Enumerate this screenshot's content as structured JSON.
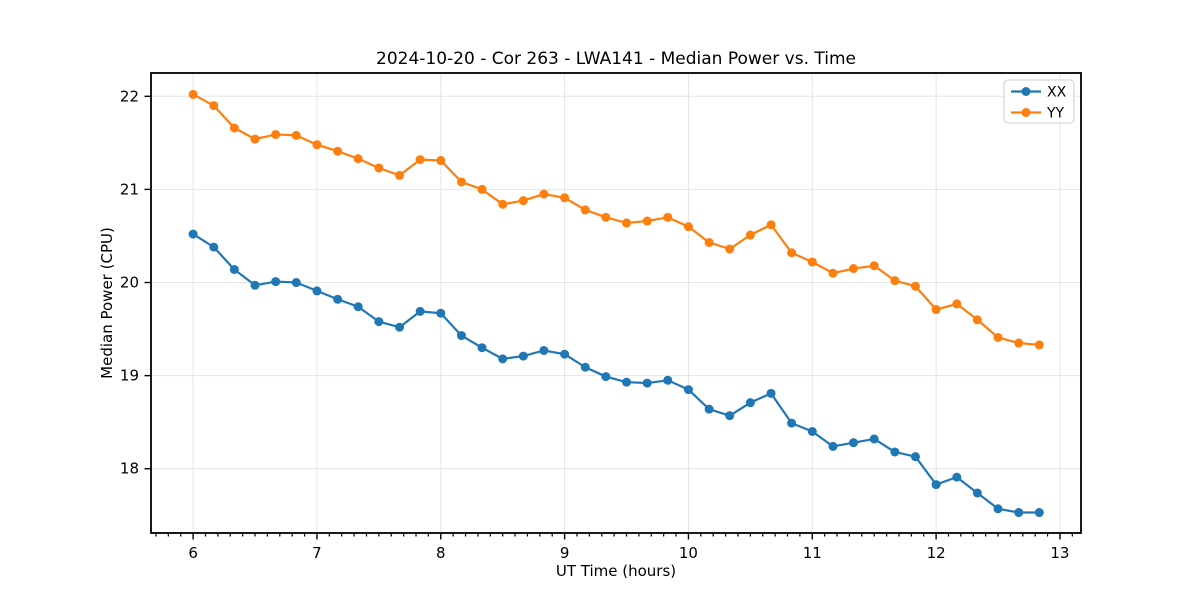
{
  "chart_data": {
    "type": "line",
    "title": "2024-10-20 - Cor 263 - LWA141 - Median Power vs. Time",
    "xlabel": "UT Time (hours)",
    "ylabel": "Median Power (CPU)",
    "x": [
      6.0,
      6.167,
      6.333,
      6.5,
      6.667,
      6.833,
      7.0,
      7.167,
      7.333,
      7.5,
      7.667,
      7.833,
      8.0,
      8.167,
      8.333,
      8.5,
      8.667,
      8.833,
      9.0,
      9.167,
      9.333,
      9.5,
      9.667,
      9.833,
      10.0,
      10.167,
      10.333,
      10.5,
      10.667,
      10.833,
      11.0,
      11.167,
      11.333,
      11.5,
      11.667,
      11.833,
      12.0,
      12.167,
      12.333,
      12.5,
      12.667,
      12.833
    ],
    "series": [
      {
        "name": "XX",
        "color": "#1f77b4",
        "marker": "circle",
        "values": [
          20.52,
          20.38,
          20.14,
          19.97,
          20.01,
          20.0,
          19.91,
          19.82,
          19.74,
          19.58,
          19.52,
          19.69,
          19.67,
          19.43,
          19.3,
          19.18,
          19.21,
          19.27,
          19.23,
          19.09,
          18.99,
          18.93,
          18.92,
          18.95,
          18.85,
          18.64,
          18.57,
          18.71,
          18.81,
          18.49,
          18.4,
          18.24,
          18.28,
          18.32,
          18.18,
          18.13,
          17.83,
          17.91,
          17.74,
          17.57,
          17.53,
          17.53
        ]
      },
      {
        "name": "YY",
        "color": "#ff7f0e",
        "marker": "circle",
        "values": [
          22.02,
          21.9,
          21.66,
          21.54,
          21.59,
          21.58,
          21.48,
          21.41,
          21.33,
          21.23,
          21.15,
          21.32,
          21.31,
          21.08,
          21.0,
          20.84,
          20.88,
          20.95,
          20.91,
          20.78,
          20.7,
          20.64,
          20.66,
          20.7,
          20.6,
          20.43,
          20.36,
          20.51,
          20.62,
          20.32,
          20.22,
          20.1,
          20.15,
          20.18,
          20.02,
          19.96,
          19.71,
          19.77,
          19.6,
          19.41,
          19.35,
          19.33
        ]
      }
    ],
    "xlim": [
      5.66,
      13.17
    ],
    "ylim": [
      17.31,
      22.25
    ],
    "xticks": [
      6,
      7,
      8,
      9,
      10,
      11,
      12,
      13
    ],
    "yticks": [
      18,
      19,
      20,
      21,
      22
    ],
    "x_minor_step": 0.1,
    "grid": true,
    "grid_color": "#e5e5e5",
    "legend": {
      "position": "upper right",
      "entries": [
        "XX",
        "YY"
      ]
    }
  }
}
